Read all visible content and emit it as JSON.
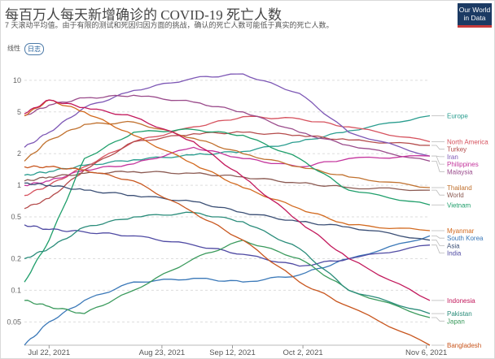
{
  "header": {
    "title": "每百万人每天新增确诊的 COVID-19 死亡人数",
    "subtitle": "7 天滚动平均值。由于有限的测试和死因归因方面的挑战，确认的死亡人数可能低于真实的死亡人数。",
    "logo_line1": "Our World",
    "logo_line2": "in Data"
  },
  "controls": {
    "linear_label": "线性",
    "log_label": "日志"
  },
  "chart_data": {
    "type": "line",
    "yscale": "log",
    "ylim": [
      0.03,
      14
    ],
    "yticks": [
      {
        "value": 10,
        "label": "10"
      },
      {
        "value": 5,
        "label": "5"
      },
      {
        "value": 2,
        "label": "2"
      },
      {
        "value": 1,
        "label": "1"
      },
      {
        "value": 0.5,
        "label": "0.5"
      },
      {
        "value": 0.2,
        "label": "0.2"
      },
      {
        "value": 0.1,
        "label": "0.1"
      },
      {
        "value": 0.05,
        "label": "0.05"
      }
    ],
    "xlim": [
      "2021-07-15",
      "2021-11-07"
    ],
    "xticks": [
      {
        "date": "2021-07-22",
        "label": "Jul 22, 2021"
      },
      {
        "date": "2021-08-23",
        "label": "Aug 23, 2021"
      },
      {
        "date": "2021-09-12",
        "label": "Sep 12, 2021"
      },
      {
        "date": "2021-10-02",
        "label": "Oct 2, 2021"
      },
      {
        "date": "2021-11-06",
        "label": "Nov 6, 2021"
      }
    ],
    "grid": true,
    "series": [
      {
        "name": "Europe",
        "color": "#2a9d8f",
        "x": [
          "2021-07-15",
          "2021-07-22",
          "2021-08-01",
          "2021-08-15",
          "2021-09-01",
          "2021-09-15",
          "2021-10-01",
          "2021-10-15",
          "2021-11-07"
        ],
        "y": [
          1.25,
          1.35,
          1.55,
          1.75,
          1.95,
          2.1,
          2.6,
          3.3,
          4.6
        ]
      },
      {
        "name": "North America",
        "color": "#d6525e",
        "x": [
          "2021-07-15",
          "2021-07-22",
          "2021-08-01",
          "2021-08-15",
          "2021-09-01",
          "2021-09-15",
          "2021-10-01",
          "2021-10-15",
          "2021-11-07"
        ],
        "y": [
          0.8,
          1.0,
          1.5,
          2.6,
          3.6,
          4.5,
          4.3,
          3.6,
          2.6
        ]
      },
      {
        "name": "Turkey",
        "color": "#b44b4b",
        "x": [
          "2021-07-15",
          "2021-07-22",
          "2021-08-01",
          "2021-08-15",
          "2021-09-01",
          "2021-09-15",
          "2021-10-01",
          "2021-10-15",
          "2021-11-07"
        ],
        "y": [
          0.6,
          0.75,
          1.4,
          2.6,
          3.1,
          3.2,
          3.0,
          2.7,
          2.4
        ]
      },
      {
        "name": "Iran",
        "color": "#7d57b5",
        "x": [
          "2021-07-15",
          "2021-07-22",
          "2021-08-01",
          "2021-08-15",
          "2021-09-01",
          "2021-09-15",
          "2021-10-01",
          "2021-10-15",
          "2021-11-07"
        ],
        "y": [
          2.3,
          3.2,
          5.5,
          8.0,
          10.5,
          11.5,
          7.5,
          3.2,
          1.9
        ]
      },
      {
        "name": "Malaysia",
        "color": "#9a4b8b",
        "x": [
          "2021-07-15",
          "2021-07-22",
          "2021-08-01",
          "2021-08-15",
          "2021-09-01",
          "2021-09-15",
          "2021-10-01",
          "2021-10-15",
          "2021-11-07"
        ],
        "y": [
          4.6,
          5.8,
          6.8,
          7.2,
          6.2,
          5.0,
          3.2,
          2.4,
          1.7
        ]
      },
      {
        "name": "Philippines",
        "color": "#c4359d",
        "x": [
          "2021-07-15",
          "2021-07-22",
          "2021-08-01",
          "2021-08-15",
          "2021-09-01",
          "2021-09-15",
          "2021-10-01",
          "2021-10-15",
          "2021-11-07"
        ],
        "y": [
          1.0,
          1.1,
          1.4,
          1.6,
          2.3,
          1.8,
          1.5,
          1.8,
          1.9
        ]
      },
      {
        "name": "Thailand",
        "color": "#c0712e",
        "x": [
          "2021-07-15",
          "2021-07-22",
          "2021-08-01",
          "2021-08-15",
          "2021-09-01",
          "2021-09-15",
          "2021-10-01",
          "2021-10-15",
          "2021-11-07"
        ],
        "y": [
          1.7,
          2.7,
          3.8,
          4.0,
          2.8,
          2.0,
          1.5,
          1.2,
          0.95
        ]
      },
      {
        "name": "World",
        "color": "#8b5a52",
        "x": [
          "2021-07-15",
          "2021-07-22",
          "2021-08-01",
          "2021-08-15",
          "2021-09-01",
          "2021-09-15",
          "2021-10-01",
          "2021-10-15",
          "2021-11-07"
        ],
        "y": [
          1.1,
          1.2,
          1.3,
          1.35,
          1.3,
          1.2,
          1.05,
          0.95,
          0.9
        ]
      },
      {
        "name": "Vietnam",
        "color": "#1e9e6a",
        "x": [
          "2021-07-15",
          "2021-07-22",
          "2021-08-01",
          "2021-08-15",
          "2021-09-01",
          "2021-09-15",
          "2021-10-01",
          "2021-10-15",
          "2021-11-07"
        ],
        "y": [
          0.12,
          0.3,
          1.8,
          3.2,
          3.4,
          3.0,
          1.8,
          0.9,
          0.65
        ]
      },
      {
        "name": "Myanmar",
        "color": "#d2691e",
        "x": [
          "2021-07-15",
          "2021-07-22",
          "2021-08-01",
          "2021-08-15",
          "2021-09-01",
          "2021-09-15",
          "2021-10-01",
          "2021-10-15",
          "2021-11-07"
        ],
        "y": [
          4.6,
          6.5,
          5.0,
          3.0,
          1.6,
          0.95,
          0.6,
          0.42,
          0.37
        ]
      },
      {
        "name": "South Korea",
        "color": "#3a78b8",
        "x": [
          "2021-07-15",
          "2021-07-22",
          "2021-08-01",
          "2021-08-15",
          "2021-09-01",
          "2021-09-15",
          "2021-10-01",
          "2021-10-15",
          "2021-11-07"
        ],
        "y": [
          0.03,
          0.05,
          0.08,
          0.12,
          0.13,
          0.12,
          0.14,
          0.2,
          0.33
        ]
      },
      {
        "name": "Asia",
        "color": "#3b4f75",
        "x": [
          "2021-07-15",
          "2021-07-22",
          "2021-08-01",
          "2021-08-15",
          "2021-09-01",
          "2021-09-15",
          "2021-10-01",
          "2021-10-15",
          "2021-11-07"
        ],
        "y": [
          1.05,
          1.0,
          0.9,
          0.8,
          0.7,
          0.55,
          0.45,
          0.4,
          0.3
        ]
      },
      {
        "name": "India",
        "color": "#4f4aa3",
        "x": [
          "2021-07-15",
          "2021-07-22",
          "2021-08-01",
          "2021-08-15",
          "2021-09-01",
          "2021-09-15",
          "2021-10-01",
          "2021-10-15",
          "2021-11-07"
        ],
        "y": [
          0.42,
          0.38,
          0.36,
          0.33,
          0.27,
          0.22,
          0.17,
          0.2,
          0.27
        ]
      },
      {
        "name": "Indonesia",
        "color": "#c2185b",
        "x": [
          "2021-07-15",
          "2021-07-22",
          "2021-08-01",
          "2021-08-15",
          "2021-09-01",
          "2021-09-15",
          "2021-10-01",
          "2021-10-15",
          "2021-11-07"
        ],
        "y": [
          4.8,
          6.5,
          5.5,
          4.5,
          2.6,
          1.2,
          0.45,
          0.2,
          0.08
        ]
      },
      {
        "name": "Japan",
        "color": "#3a9a5c",
        "x": [
          "2021-07-15",
          "2021-07-22",
          "2021-08-01",
          "2021-08-15",
          "2021-09-01",
          "2021-09-15",
          "2021-10-01",
          "2021-10-15",
          "2021-11-07"
        ],
        "y": [
          0.08,
          0.07,
          0.06,
          0.1,
          0.2,
          0.3,
          0.2,
          0.1,
          0.055
        ]
      },
      {
        "name": "Pakistan",
        "color": "#2a8c7a",
        "x": [
          "2021-07-15",
          "2021-07-22",
          "2021-08-01",
          "2021-08-15",
          "2021-09-01",
          "2021-09-15",
          "2021-10-01",
          "2021-10-15",
          "2021-11-07"
        ],
        "y": [
          0.2,
          0.25,
          0.4,
          0.5,
          0.55,
          0.45,
          0.25,
          0.1,
          0.06
        ]
      },
      {
        "name": "Bangladesh",
        "color": "#c8561e",
        "x": [
          "2021-07-15",
          "2021-07-22",
          "2021-08-01",
          "2021-08-15",
          "2021-09-01",
          "2021-09-15",
          "2021-10-01",
          "2021-10-15",
          "2021-11-07"
        ],
        "y": [
          1.5,
          1.5,
          1.4,
          1.1,
          0.55,
          0.3,
          0.12,
          0.07,
          0.03
        ]
      }
    ]
  }
}
